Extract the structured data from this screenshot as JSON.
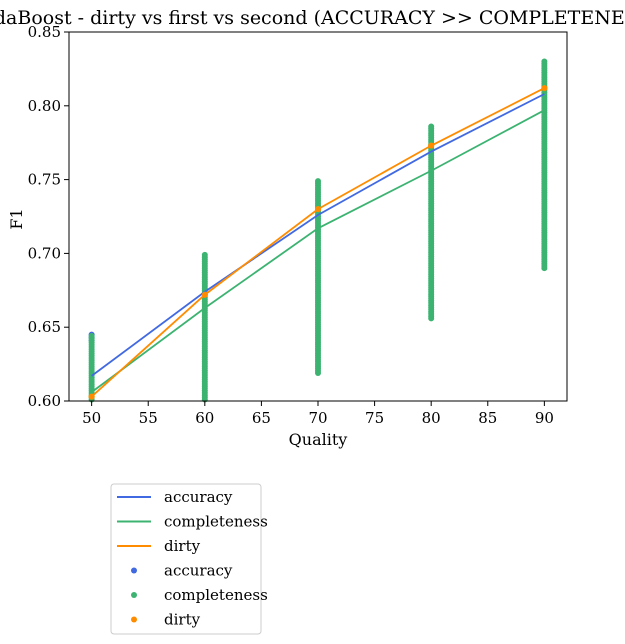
{
  "chart_data": {
    "type": "line",
    "title": "AdaBoost - dirty vs first vs second (ACCURACY >> COMPLETENESS)",
    "xlabel": "Quality",
    "ylabel": "F1",
    "xlim": [
      48,
      92
    ],
    "ylim": [
      0.6,
      0.85
    ],
    "xticks": [
      50,
      55,
      60,
      65,
      70,
      75,
      80,
      85,
      90
    ],
    "yticks": [
      0.6,
      0.65,
      0.7,
      0.75,
      0.8,
      0.85
    ],
    "grid": false,
    "legend_position": "below-left",
    "colors": {
      "accuracy": "#4169e1",
      "completeness": "#3cb371",
      "dirty": "#ff8c00"
    },
    "line_series": [
      {
        "name": "accuracy",
        "x": [
          50,
          60,
          70,
          80,
          90
        ],
        "y": [
          0.617,
          0.674,
          0.726,
          0.769,
          0.808
        ]
      },
      {
        "name": "completeness",
        "x": [
          50,
          60,
          70,
          80,
          90
        ],
        "y": [
          0.606,
          0.663,
          0.717,
          0.756,
          0.797
        ]
      },
      {
        "name": "dirty",
        "x": [
          50,
          60,
          70,
          80,
          90
        ],
        "y": [
          0.603,
          0.672,
          0.73,
          0.773,
          0.812
        ]
      }
    ],
    "scatter_series": [
      {
        "name": "accuracy",
        "points": [
          [
            50,
            0.645
          ],
          [
            50,
            0.643
          ],
          [
            50,
            0.641
          ]
        ]
      },
      {
        "name": "completeness",
        "ranges": [
          {
            "x": 50,
            "ymin": 0.601,
            "ymax": 0.644
          },
          {
            "x": 60,
            "ymin": 0.601,
            "ymax": 0.699
          },
          {
            "x": 70,
            "ymin": 0.619,
            "ymax": 0.749
          },
          {
            "x": 80,
            "ymin": 0.656,
            "ymax": 0.786
          },
          {
            "x": 90,
            "ymin": 0.69,
            "ymax": 0.83
          }
        ]
      },
      {
        "name": "dirty",
        "points": [
          [
            50,
            0.603
          ],
          [
            60,
            0.672
          ],
          [
            70,
            0.73
          ],
          [
            80,
            0.773
          ],
          [
            90,
            0.812
          ]
        ]
      }
    ],
    "legend": [
      {
        "label": "accuracy",
        "kind": "line",
        "series": "accuracy"
      },
      {
        "label": "completeness",
        "kind": "line",
        "series": "completeness"
      },
      {
        "label": "dirty",
        "kind": "line",
        "series": "dirty"
      },
      {
        "label": "accuracy",
        "kind": "marker",
        "series": "accuracy"
      },
      {
        "label": "completeness",
        "kind": "marker",
        "series": "completeness"
      },
      {
        "label": "dirty",
        "kind": "marker",
        "series": "dirty"
      }
    ]
  }
}
